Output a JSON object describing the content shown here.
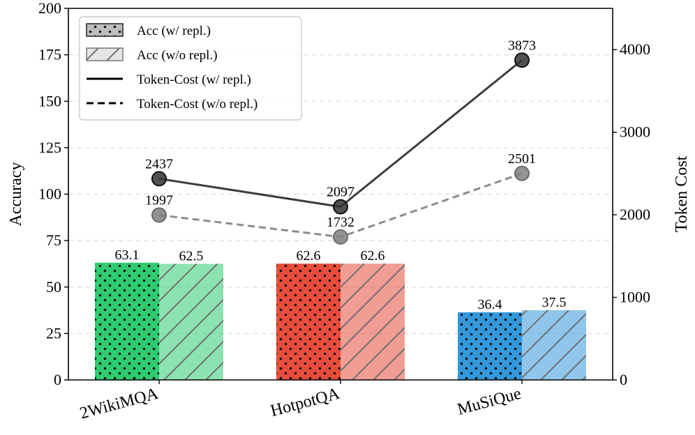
{
  "chart_data": {
    "type": "bar",
    "categories": [
      "2WikiMQA",
      "HotpotQA",
      "MuSiQue"
    ],
    "category_colors": [
      "#2ecc71",
      "#e74c3c",
      "#3498db"
    ],
    "ylabel": "Accuracy",
    "y2label": "Token Cost",
    "ylim": [
      0,
      200
    ],
    "yticks": [
      "0",
      "25",
      "50",
      "75",
      "100",
      "125",
      "150",
      "175",
      "200"
    ],
    "y2lim": [
      0,
      4500
    ],
    "y2ticks": [
      "0",
      "1000",
      "2000",
      "3000",
      "4000"
    ],
    "grid": "horizontal dashed",
    "legend_position": "top-left",
    "series": [
      {
        "name": "Acc (w/ repl.)",
        "kind": "bar",
        "hatch": "dots",
        "axis": "left",
        "values": [
          63.1,
          62.6,
          36.4
        ],
        "labels": [
          "63.1",
          "62.6",
          "36.4"
        ]
      },
      {
        "name": "Acc (w/o repl.)",
        "kind": "bar",
        "hatch": "diagonal",
        "axis": "left",
        "values": [
          62.5,
          62.6,
          37.5
        ],
        "labels": [
          "62.5",
          "62.6",
          "37.5"
        ]
      },
      {
        "name": "Token-Cost (w/ repl.)",
        "kind": "line",
        "style": "solid",
        "color": "#333333",
        "axis": "right",
        "values": [
          2437,
          2097,
          3873
        ],
        "labels": [
          "2437",
          "2097",
          "3873"
        ]
      },
      {
        "name": "Token-Cost (w/o repl.)",
        "kind": "line",
        "style": "dashed",
        "color": "#808080",
        "axis": "right",
        "values": [
          1997,
          1732,
          2501
        ],
        "labels": [
          "1997",
          "1732",
          "2501"
        ]
      }
    ]
  }
}
